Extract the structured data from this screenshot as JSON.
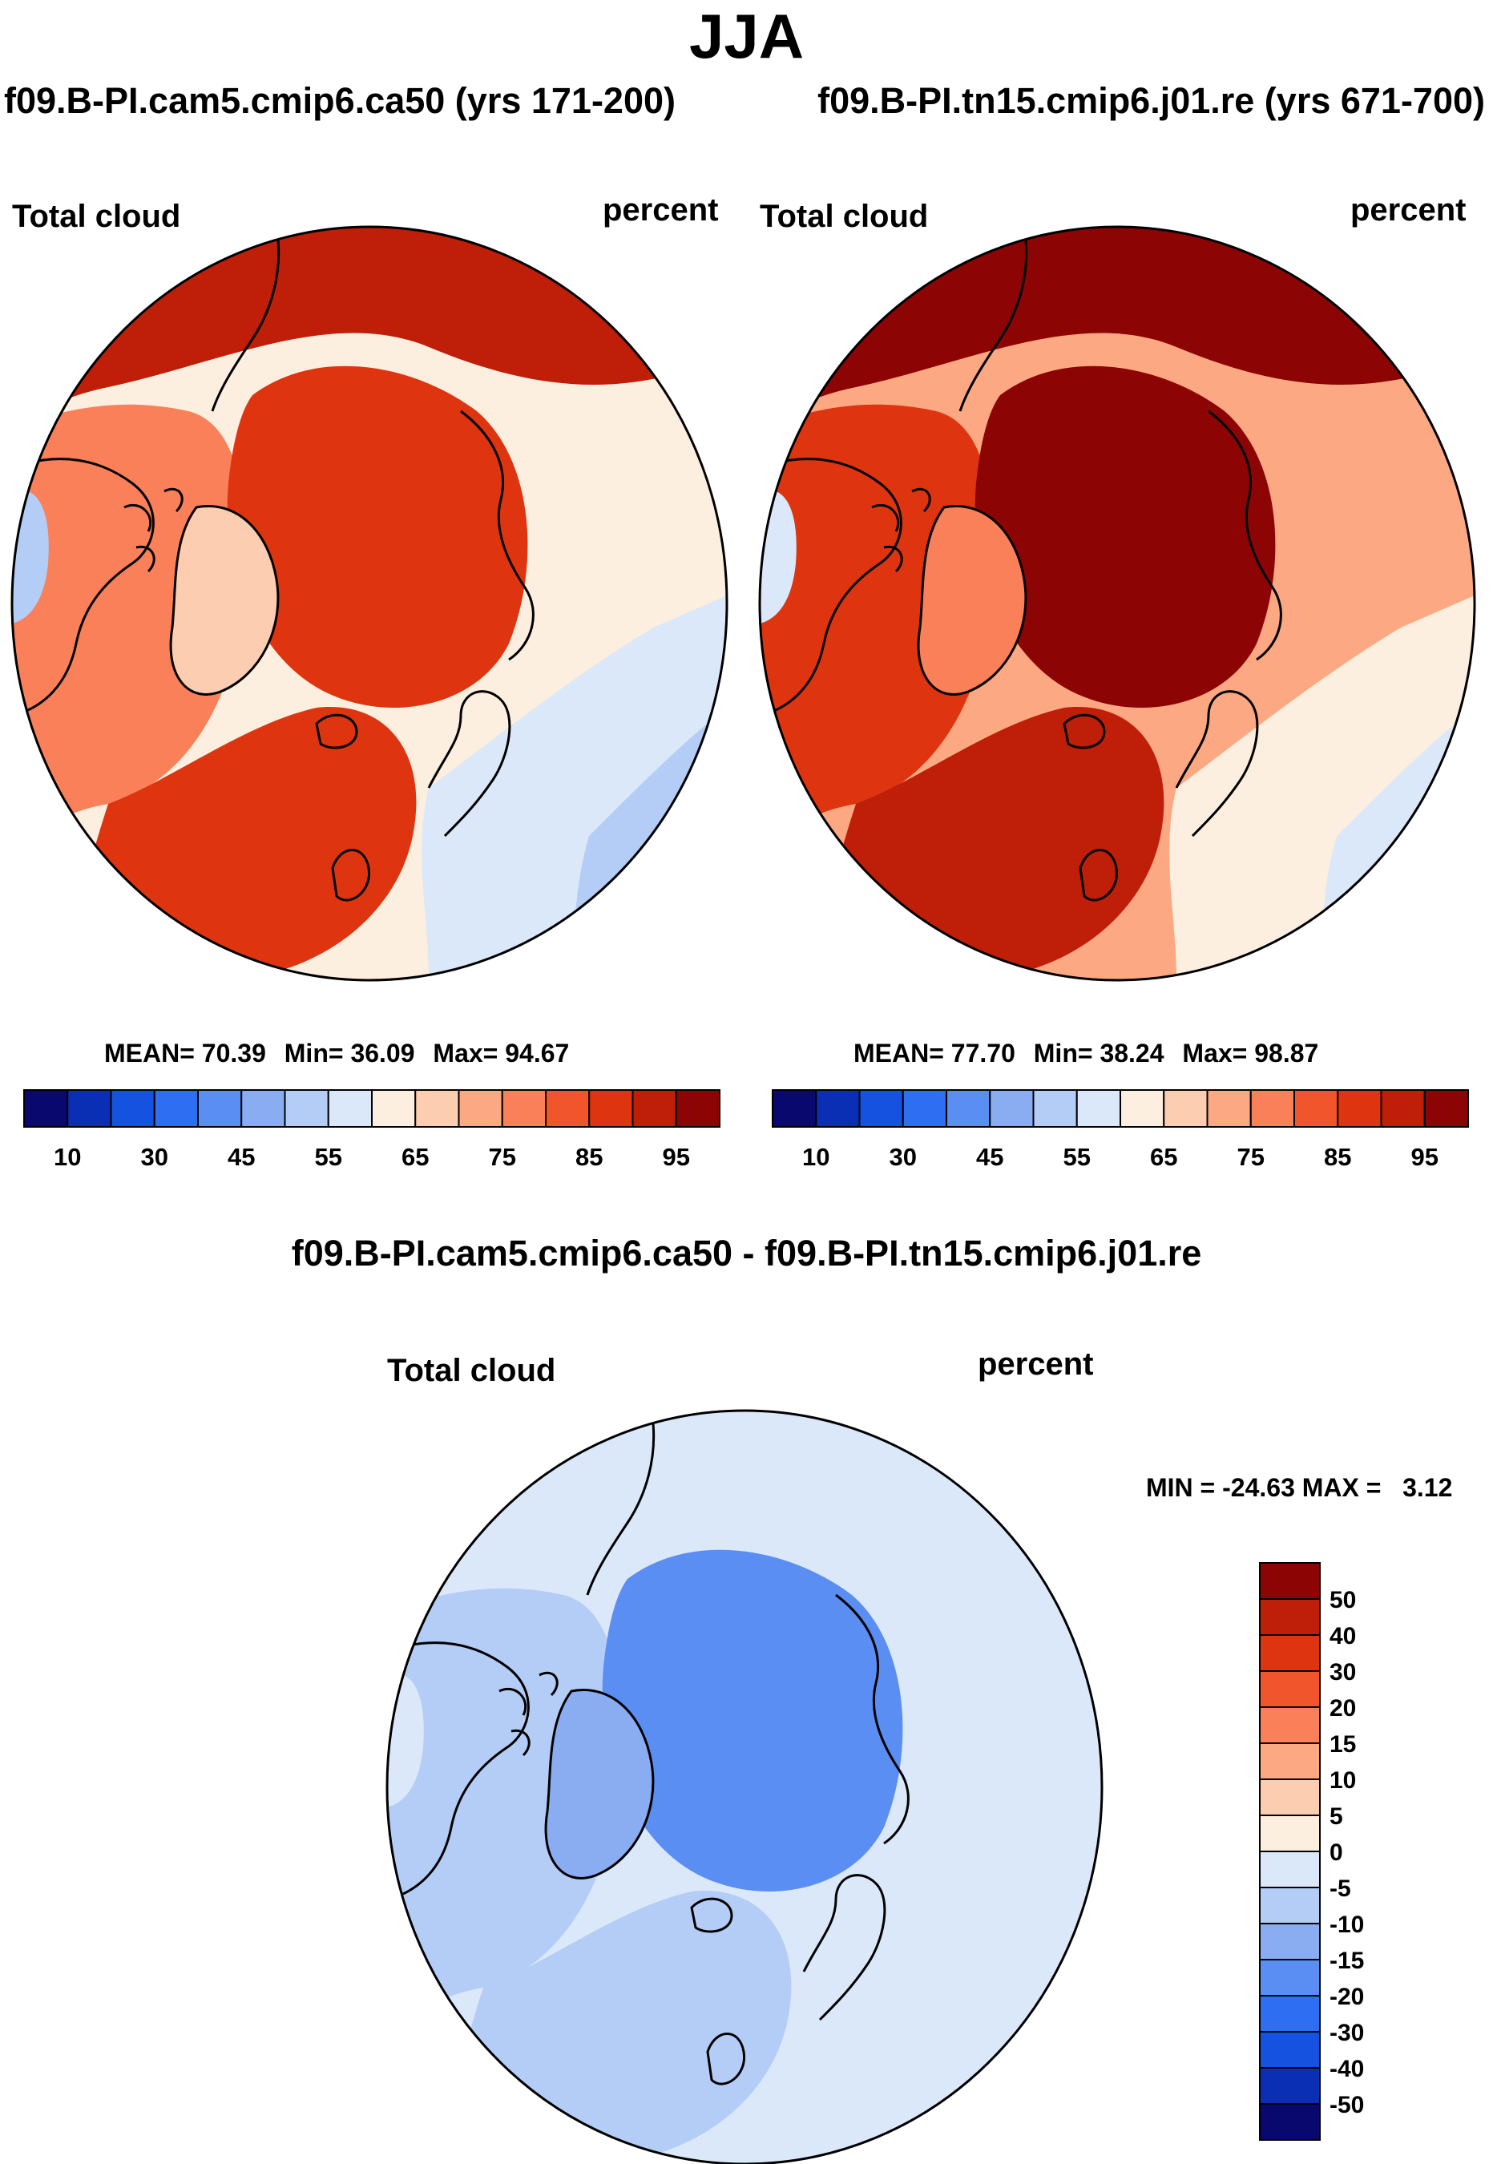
{
  "season": "JJA",
  "case_left_header": "f09.B-PI.cam5.cmip6.ca50 (yrs 171-200)",
  "case_right_header": "f09.B-PI.tn15.cmip6.j01.re (yrs 671-700)",
  "diff_title": "f09.B-PI.cam5.cmip6.ca50 - f09.B-PI.tn15.cmip6.j01.re",
  "panels": [
    {
      "id": "left",
      "variable": "Total cloud",
      "units": "percent",
      "stats": {
        "mean_label": "MEAN=",
        "mean": "70.39",
        "min_label": "Min=",
        "min": "36.09",
        "max_label": "Max=",
        "max": "94.67"
      },
      "regional_levels": {
        "arctic_ocean": 85,
        "north_pacific": 90,
        "north_atlantic": 85,
        "greenland": 65,
        "canada": 75,
        "siberia": 60,
        "europe": 55,
        "asia_south": 50
      }
    },
    {
      "id": "right",
      "variable": "Total cloud",
      "units": "percent",
      "stats": {
        "mean_label": "MEAN=",
        "mean": "77.70",
        "min_label": "Min=",
        "min": "38.24",
        "max_label": "Max=",
        "max": "98.87"
      },
      "regional_levels": {
        "arctic_ocean": 95,
        "north_pacific": 95,
        "north_atlantic": 90,
        "greenland": 75,
        "canada": 85,
        "siberia": 70,
        "europe": 60,
        "asia_south": 55
      }
    },
    {
      "id": "diff",
      "variable": "Total cloud",
      "units": "percent",
      "minmax_text": "MIN = -24.63 MAX =   3.12",
      "regional_levels": {
        "arctic_ocean": -20,
        "north_pacific": -5,
        "north_atlantic": -10,
        "greenland": -15,
        "canada": -10,
        "siberia": -5,
        "europe": -5,
        "asia_south": -5
      }
    }
  ],
  "colorbar_abs": {
    "colors": [
      "#08086e",
      "#0a2fb4",
      "#1652e0",
      "#2e6ef2",
      "#5b8ef2",
      "#8aadf2",
      "#b4cdf6",
      "#dbe8fa",
      "#fdefe0",
      "#fccdb0",
      "#fca883",
      "#fa8059",
      "#f0552c",
      "#de3510",
      "#bf1e08",
      "#8c0404"
    ],
    "labels": [
      "10",
      "30",
      "45",
      "55",
      "65",
      "75",
      "85",
      "95"
    ]
  },
  "colorbar_diff": {
    "colors": [
      "#8c0404",
      "#bf1e08",
      "#de3510",
      "#f0552c",
      "#fa8059",
      "#fca883",
      "#fccdb0",
      "#fdefe0",
      "#dbe8fa",
      "#b4cdf6",
      "#8aadf2",
      "#5b8ef2",
      "#2e6ef2",
      "#1652e0",
      "#0a2fb4",
      "#08086e"
    ],
    "labels": [
      "50",
      "40",
      "30",
      "20",
      "15",
      "10",
      "5",
      "0",
      "-5",
      "-10",
      "-15",
      "-20",
      "-30",
      "-40",
      "-50"
    ]
  }
}
